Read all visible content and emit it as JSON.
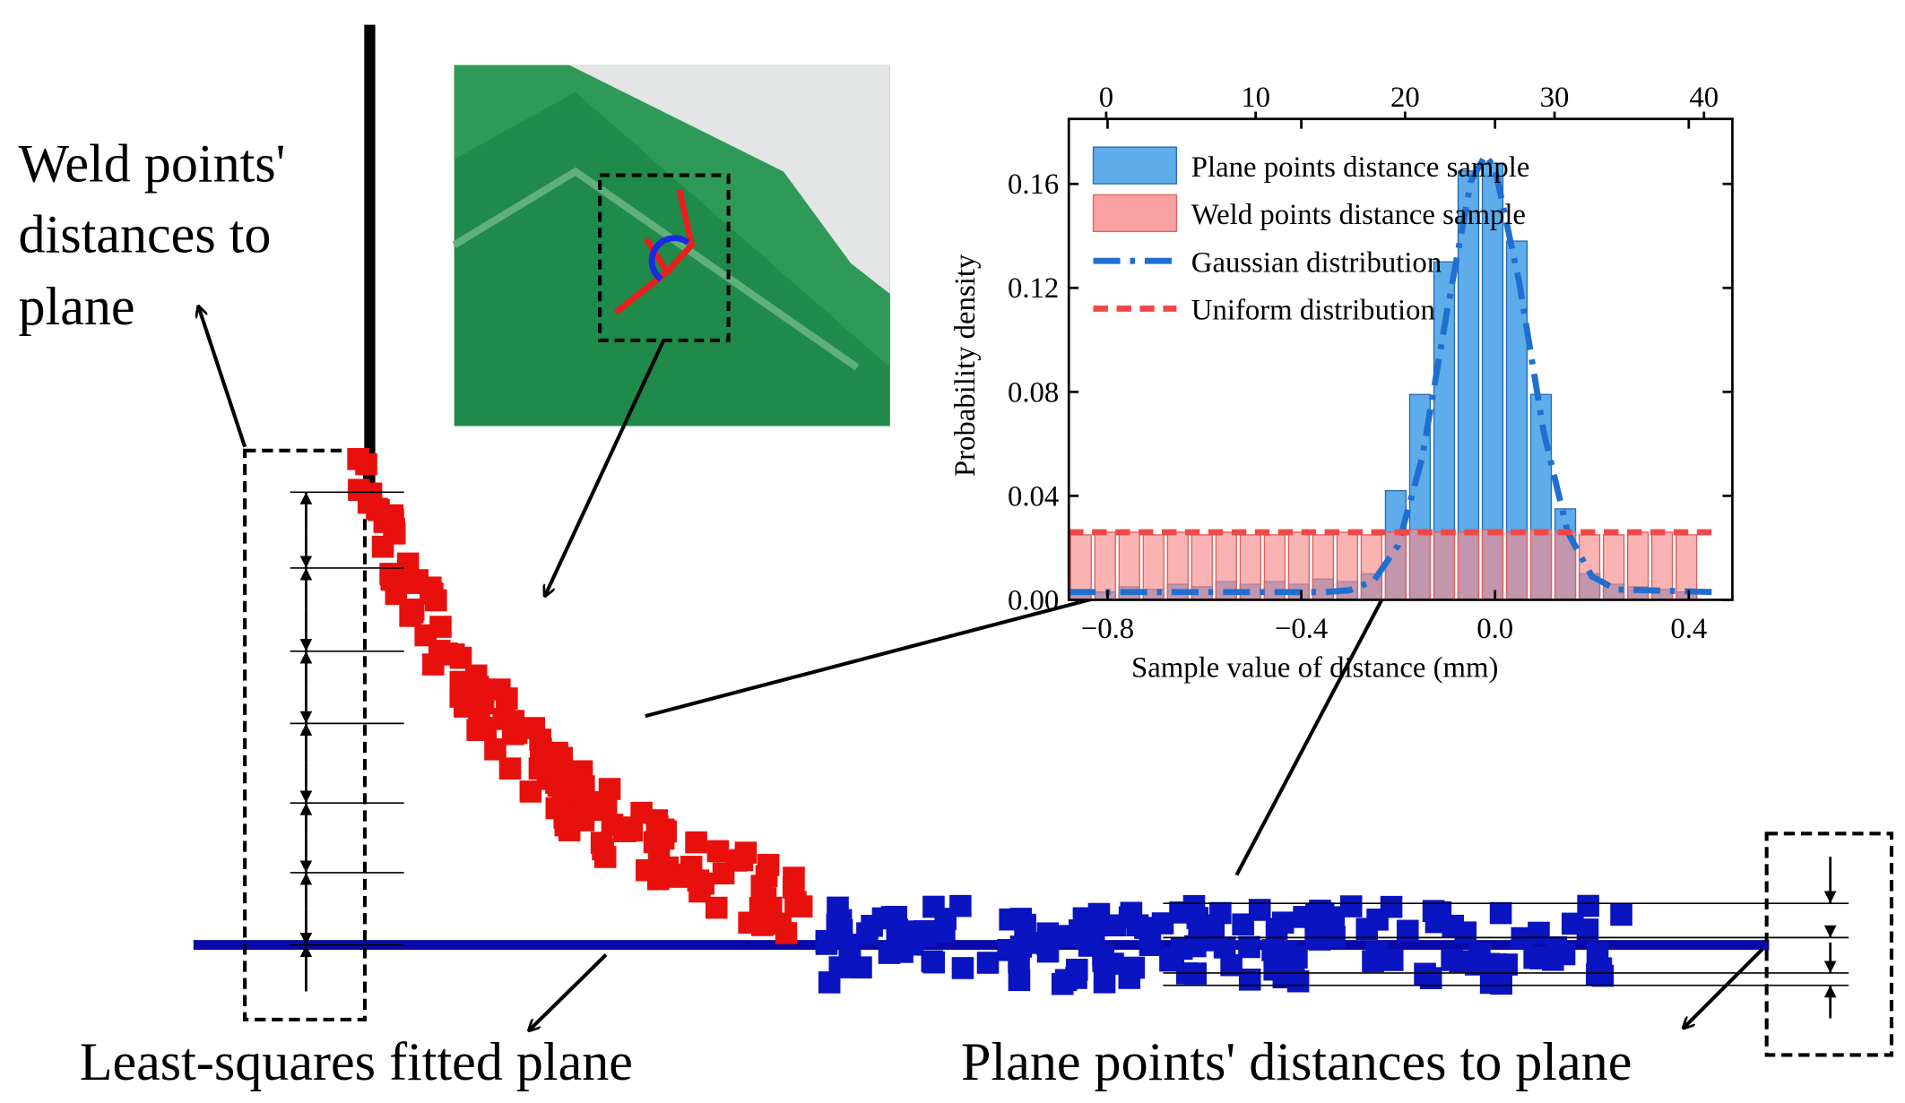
{
  "annotations": {
    "weld_label": [
      "Weld points'",
      "distances to",
      "plane"
    ],
    "fit_label": "Least-squares fitted plane",
    "plane_label": "Plane points' distances to plane"
  },
  "chart_data": {
    "type": "histogram",
    "xlabel": "Sample value of distance (mm)",
    "ylabel": "Probability density",
    "xlim": [
      -0.88,
      0.49
    ],
    "xticks": [
      {
        "value": -0.8,
        "label": "−0.8"
      },
      {
        "value": -0.4,
        "label": "−0.4"
      },
      {
        "value": 0,
        "label": "0.0"
      },
      0.4
    ],
    "x2lim": [
      -2.5,
      41.9
    ],
    "x2ticks": [
      0,
      10,
      20,
      30,
      40
    ],
    "ylim": [
      0,
      0.185
    ],
    "yticks": [
      {
        "value": 0,
        "label": "0.00"
      },
      {
        "value": 0.04,
        "label": "0.04"
      },
      {
        "value": 0.08,
        "label": "0.08"
      },
      {
        "value": 0.12,
        "label": "0.12"
      },
      {
        "value": 0.16,
        "label": "0.16"
      }
    ],
    "bins": [
      -0.88,
      -0.83,
      -0.78,
      -0.73,
      -0.68,
      -0.63,
      -0.58,
      -0.53,
      -0.48,
      -0.43,
      -0.38,
      -0.33,
      -0.28,
      -0.23,
      -0.18,
      -0.13,
      -0.08,
      -0.03,
      0.02,
      0.07,
      0.12,
      0.17,
      0.22,
      0.27,
      0.32,
      0.37,
      0.42
    ],
    "series": [
      {
        "name": "Plane points distance sample",
        "color": "#4da3e8",
        "values": [
          0.004,
          0.003,
          0.005,
          0.004,
          0.006,
          0.005,
          0.007,
          0.006,
          0.007,
          0.006,
          0.008,
          0.007,
          0.01,
          0.042,
          0.079,
          0.13,
          0.165,
          0.168,
          0.138,
          0.079,
          0.035,
          0.01,
          0.006,
          0.005,
          0.004,
          0.003
        ]
      },
      {
        "name": "Weld points distance sample",
        "color": "#f78a8a",
        "values": [
          0.025,
          0.026,
          0.026,
          0.025,
          0.026,
          0.025,
          0.026,
          0.025,
          0.025,
          0.026,
          0.025,
          0.026,
          0.025,
          0.026,
          0.027,
          0.026,
          0.026,
          0.027,
          0.026,
          0.027,
          0.026,
          0.025,
          0.025,
          0.026,
          0.026,
          0.025
        ]
      }
    ],
    "lines": [
      {
        "name": "Gaussian distribution",
        "color": "#1f6fd0",
        "style": "dashdot",
        "x": [
          -0.88,
          -0.5,
          -0.35,
          -0.3,
          -0.25,
          -0.2,
          -0.15,
          -0.1,
          -0.05,
          -0.02,
          0,
          0.05,
          0.1,
          0.15,
          0.2,
          0.25,
          0.45
        ],
        "y": [
          0.003,
          0.003,
          0.003,
          0.0037,
          0.0074,
          0.021,
          0.055,
          0.11,
          0.161,
          0.171,
          0.166,
          0.122,
          0.065,
          0.026,
          0.009,
          0.004,
          0.003
        ]
      },
      {
        "name": "Uniform distribution",
        "color": "#f04848",
        "style": "dashed",
        "x": [
          -0.88,
          0.45
        ],
        "y": [
          0.026,
          0.026
        ]
      }
    ],
    "legend": "upper left"
  }
}
